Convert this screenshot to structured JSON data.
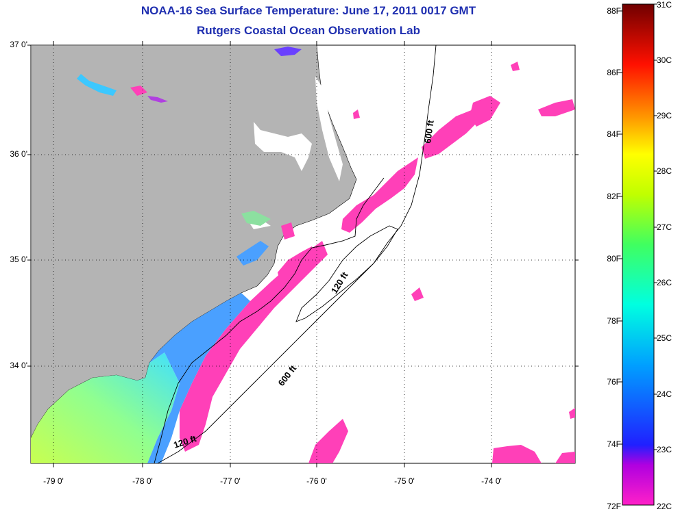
{
  "title": {
    "line1": "NOAA-16 Sea Surface Temperature:  June 17, 2011 0017 GMT",
    "line2": "Rutgers Coastal Ocean Observation Lab"
  },
  "map": {
    "lat_labels": [
      "37 0'",
      "36 0'",
      "35 0'",
      "34 0'"
    ],
    "lon_labels": [
      "-79 0'",
      "-78 0'",
      "-77 0'",
      "-76 0'",
      "-75 0'",
      "-74 0'"
    ],
    "contour_labels": [
      "600 ft",
      "120 ft",
      "600 ft",
      "120 ft"
    ],
    "colors": {
      "land": "#b4b4b4",
      "cloud": "#ffffff",
      "cool_water": "#ff40b8",
      "nearshore_water": "#4aa0ff",
      "warm_water": "#b8ff60"
    }
  },
  "colorbar": {
    "fahrenheit": [
      "88F",
      "86F",
      "84F",
      "82F",
      "80F",
      "78F",
      "76F",
      "74F",
      "72F"
    ],
    "celsius": [
      "31C",
      "30C",
      "29C",
      "28C",
      "27C",
      "26C",
      "25C",
      "24C",
      "23C",
      "22C"
    ]
  }
}
